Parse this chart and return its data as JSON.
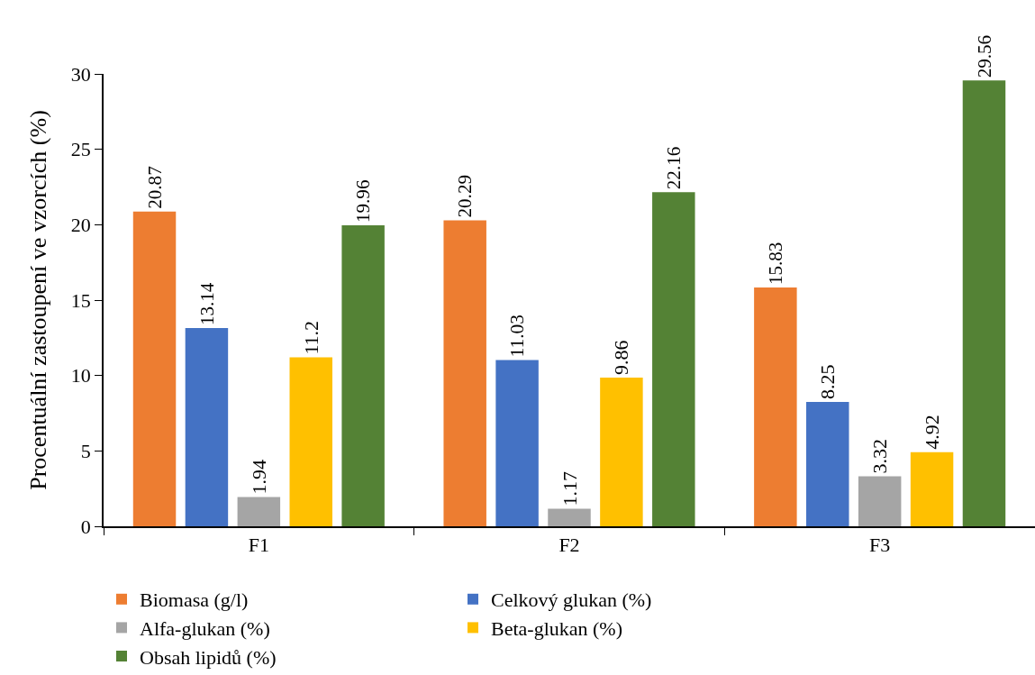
{
  "chart_data": {
    "type": "bar",
    "ylabel": "Procentuální zastoupení ve vzorcích (%)",
    "categories": [
      "F1",
      "F2",
      "F3"
    ],
    "series": [
      {
        "name": "Biomasa (g/l)",
        "color": "#ed7d31",
        "values": [
          20.87,
          20.29,
          15.83
        ]
      },
      {
        "name": "Celkový glukan (%)",
        "color": "#4472c4",
        "values": [
          13.14,
          11.03,
          8.25
        ]
      },
      {
        "name": "Alfa-glukan (%)",
        "color": "#a5a5a5",
        "values": [
          1.94,
          1.17,
          3.32
        ]
      },
      {
        "name": "Beta-glukan (%)",
        "color": "#ffc000",
        "values": [
          11.2,
          9.86,
          4.92
        ]
      },
      {
        "name": "Obsah lipidů (%)",
        "color": "#548235",
        "values": [
          19.96,
          22.16,
          29.56
        ]
      }
    ],
    "ylim": [
      0,
      30
    ],
    "yticks": [
      0,
      5,
      10,
      15,
      20,
      25,
      30
    ],
    "grid": false,
    "legend": "bottom",
    "data_labels": true
  }
}
